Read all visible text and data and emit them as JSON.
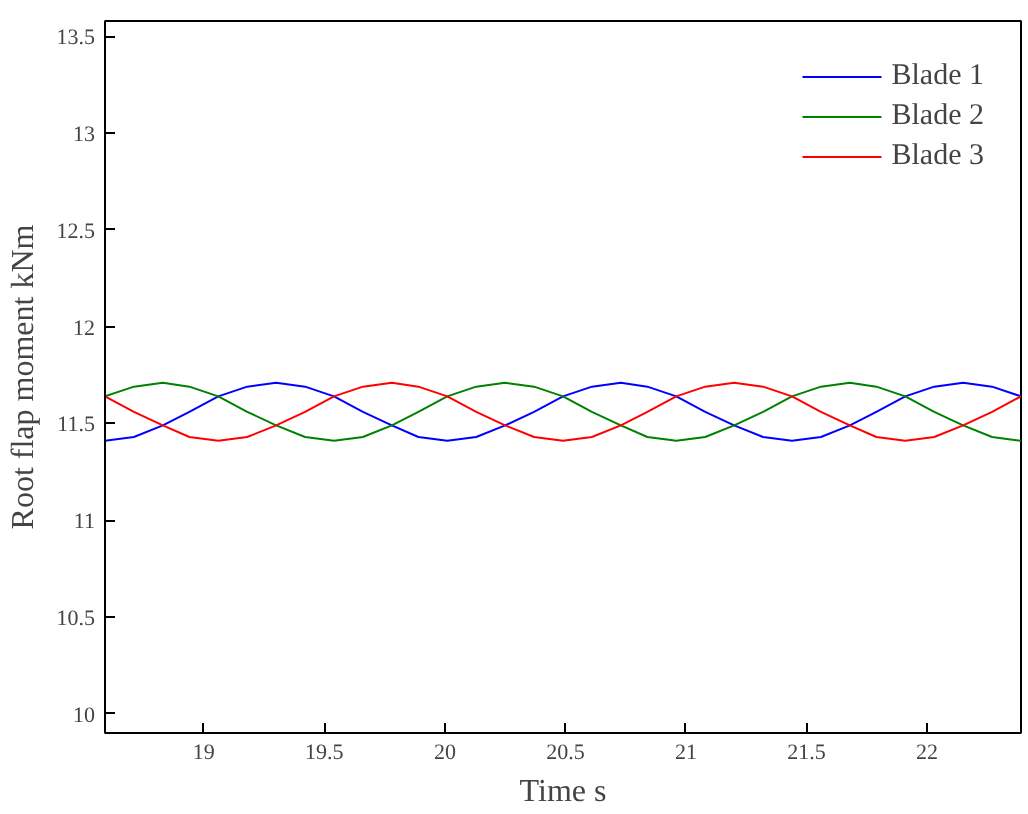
{
  "chart_data": {
    "type": "line",
    "xlabel": "Time s",
    "ylabel": "Root flap moment kNm",
    "x": [
      18.59,
      18.71,
      18.83,
      18.94,
      19.06,
      19.18,
      19.3,
      19.42,
      19.54,
      19.66,
      19.78,
      19.89,
      20.01,
      20.13,
      20.25,
      20.37,
      20.49,
      20.61,
      20.73,
      20.84,
      20.96,
      21.08,
      21.2,
      21.32,
      21.44,
      21.56,
      21.68,
      21.79,
      21.91,
      22.03,
      22.15,
      22.27,
      22.39
    ],
    "series": [
      {
        "name": "Blade 1",
        "color": "#0000ff",
        "values": [
          11.41,
          11.43,
          11.49,
          11.56,
          11.64,
          11.69,
          11.71,
          11.69,
          11.64,
          11.56,
          11.49,
          11.43,
          11.41,
          11.43,
          11.49,
          11.56,
          11.64,
          11.69,
          11.71,
          11.69,
          11.64,
          11.56,
          11.49,
          11.43,
          11.41,
          11.43,
          11.49,
          11.56,
          11.64,
          11.69,
          11.71,
          11.69,
          11.64
        ]
      },
      {
        "name": "Blade 2",
        "color": "#008000",
        "values": [
          11.64,
          11.69,
          11.71,
          11.69,
          11.64,
          11.56,
          11.49,
          11.43,
          11.41,
          11.43,
          11.49,
          11.56,
          11.64,
          11.69,
          11.71,
          11.69,
          11.64,
          11.56,
          11.49,
          11.43,
          11.41,
          11.43,
          11.49,
          11.56,
          11.64,
          11.69,
          11.71,
          11.69,
          11.64,
          11.56,
          11.49,
          11.43,
          11.41
        ]
      },
      {
        "name": "Blade 3",
        "color": "#ff0000",
        "values": [
          11.64,
          11.56,
          11.49,
          11.43,
          11.41,
          11.43,
          11.49,
          11.56,
          11.64,
          11.69,
          11.71,
          11.69,
          11.64,
          11.56,
          11.49,
          11.43,
          11.41,
          11.43,
          11.49,
          11.56,
          11.64,
          11.69,
          11.71,
          11.69,
          11.64,
          11.56,
          11.49,
          11.43,
          11.41,
          11.43,
          11.49,
          11.56,
          11.64
        ]
      }
    ],
    "xlim": [
      18.59,
      22.39
    ],
    "ylim": [
      9.9,
      13.58
    ],
    "xticks": [
      19,
      19.5,
      20,
      20.5,
      21,
      21.5,
      22
    ],
    "yticks": [
      10,
      10.5,
      11,
      11.5,
      12,
      12.5,
      13,
      13.5
    ],
    "grid": false,
    "legend": "top right",
    "line_style": "solid"
  }
}
